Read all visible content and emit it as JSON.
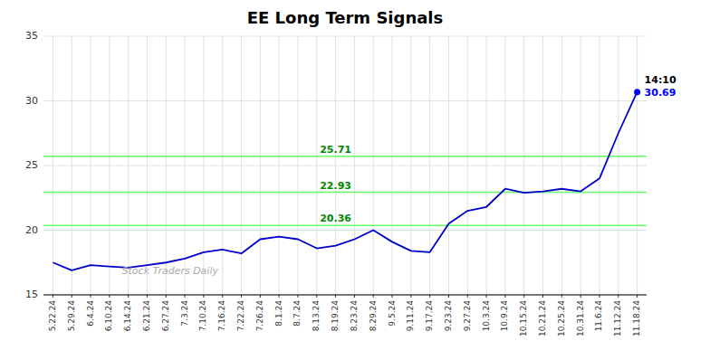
{
  "chart_data": {
    "type": "line",
    "title": "EE Long Term Signals",
    "categories": [
      "5.22.24",
      "5.29.24",
      "6.4.24",
      "6.10.24",
      "6.14.24",
      "6.21.24",
      "6.27.24",
      "7.3.24",
      "7.10.24",
      "7.16.24",
      "7.22.24",
      "7.26.24",
      "8.1.24",
      "8.7.24",
      "8.13.24",
      "8.19.24",
      "8.23.24",
      "8.29.24",
      "9.5.24",
      "9.11.24",
      "9.17.24",
      "9.23.24",
      "9.27.24",
      "10.3.24",
      "10.9.24",
      "10.15.24",
      "10.21.24",
      "10.25.24",
      "10.31.24",
      "11.6.24",
      "11.12.24",
      "11.18.24"
    ],
    "values": [
      17.5,
      16.9,
      17.3,
      17.2,
      17.1,
      17.3,
      17.5,
      17.8,
      18.3,
      18.5,
      18.2,
      19.3,
      19.5,
      19.3,
      18.6,
      18.8,
      19.3,
      20.0,
      19.1,
      18.4,
      18.3,
      20.5,
      21.5,
      21.8,
      23.2,
      22.9,
      23.0,
      23.2,
      23.0,
      24.0,
      27.5,
      30.69
    ],
    "color": "#0000cc",
    "ylim": [
      15,
      35
    ],
    "yticks": [
      15,
      20,
      25,
      30,
      35
    ],
    "grid": true,
    "reference_lines": {
      "values": [
        20.36,
        22.93,
        25.71
      ],
      "color": "#66ff66",
      "label_color": "#008800"
    },
    "last_point": {
      "color": "#0000ff"
    },
    "annotations": [
      {
        "text": "14:10",
        "color": "#000000"
      },
      {
        "text": "30.69",
        "color": "#0000ff"
      }
    ],
    "watermark": {
      "text": "Stock Traders Daily",
      "color": "#aaaaaa"
    }
  }
}
